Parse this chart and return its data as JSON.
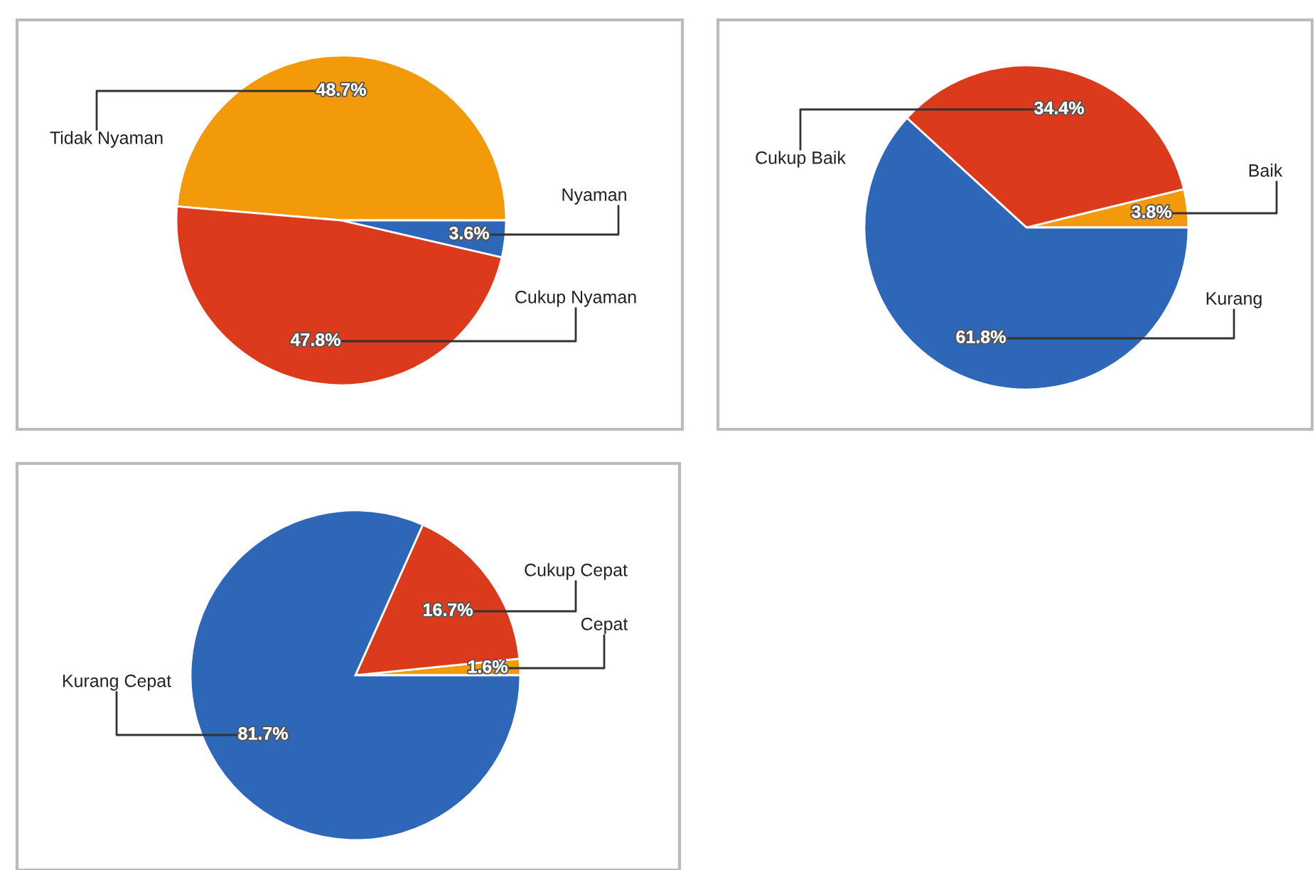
{
  "chart_data": [
    {
      "type": "pie",
      "categories": [
        "Tidak Nyaman",
        "Cukup Nyaman",
        "Nyaman"
      ],
      "values": [
        48.7,
        47.8,
        3.6
      ],
      "value_labels": [
        "48.7%",
        "47.8%",
        "3.6%"
      ],
      "colors": [
        "#f39a0b",
        "#dc3a1c",
        "#2f67b8"
      ]
    },
    {
      "type": "pie",
      "categories": [
        "Baik",
        "Cukup Baik",
        "Kurang"
      ],
      "values": [
        3.8,
        34.4,
        61.8
      ],
      "value_labels": [
        "3.8%",
        "34.4%",
        "61.8%"
      ],
      "colors": [
        "#f39a0b",
        "#dc3a1c",
        "#2f67b8"
      ]
    },
    {
      "type": "pie",
      "categories": [
        "Cepat",
        "Cukup Cepat",
        "Kurang Cepat"
      ],
      "values": [
        1.6,
        16.7,
        81.7
      ],
      "value_labels": [
        "1.6%",
        "16.7%",
        "81.7%"
      ],
      "colors": [
        "#f39a0b",
        "#dc3a1c",
        "#2f67b8"
      ]
    }
  ]
}
